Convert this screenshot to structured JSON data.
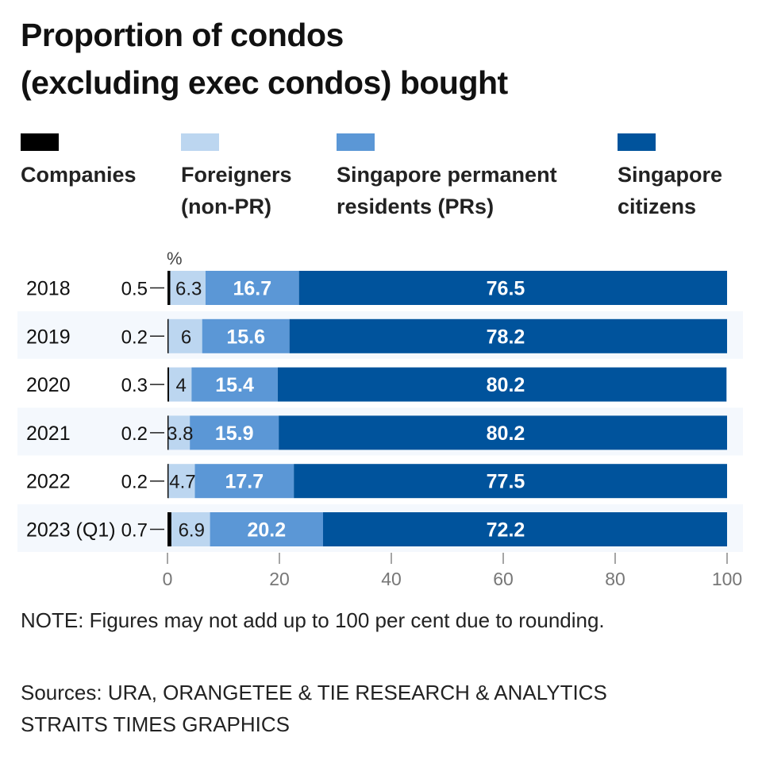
{
  "chart_data": {
    "type": "bar",
    "orientation": "horizontal",
    "stacked": true,
    "title": "Proportion of condos (excluding exec condos) bought",
    "title_lines": [
      "Proportion of condos",
      "(excluding exec condos) bought"
    ],
    "unit_label": "%",
    "categories": [
      "2018",
      "2019",
      "2020",
      "2021",
      "2022",
      "2023 (Q1)"
    ],
    "series": [
      {
        "name": "Companies",
        "color": "#000000",
        "values": [
          0.5,
          0.2,
          0.3,
          0.2,
          0.2,
          0.7
        ]
      },
      {
        "name": "Foreigners (non-PR)",
        "color": "#bcd6f0",
        "values": [
          6.3,
          6,
          4,
          3.8,
          4.7,
          6.9
        ]
      },
      {
        "name": "Singapore permanent residents (PRs)",
        "color": "#5b97d6",
        "values": [
          16.7,
          15.6,
          15.4,
          15.9,
          17.7,
          20.2
        ]
      },
      {
        "name": "Singapore citizens",
        "color": "#00539c",
        "values": [
          76.5,
          78.2,
          80.2,
          80.2,
          77.5,
          72.2
        ]
      }
    ],
    "legend": [
      {
        "lines": [
          "Companies"
        ],
        "color": "#000000"
      },
      {
        "lines": [
          "Foreigners",
          "(non-PR)"
        ],
        "color": "#bcd6f0"
      },
      {
        "lines": [
          "Singapore permanent",
          "residents (PRs)"
        ],
        "color": "#5b97d6"
      },
      {
        "lines": [
          "Singapore",
          "citizens"
        ],
        "color": "#00539c"
      }
    ],
    "legend_position": "top",
    "xlim": [
      0,
      100
    ],
    "xticks": [
      0,
      20,
      40,
      60,
      80,
      100
    ],
    "grid": false,
    "annotations": {
      "note": "NOTE: Figures may not add up to 100 per cent due to rounding.",
      "sources": [
        "Sources: URA, ORANGETEE & TIE RESEARCH & ANALYTICS",
        "STRAITS TIMES GRAPHICS"
      ]
    }
  }
}
